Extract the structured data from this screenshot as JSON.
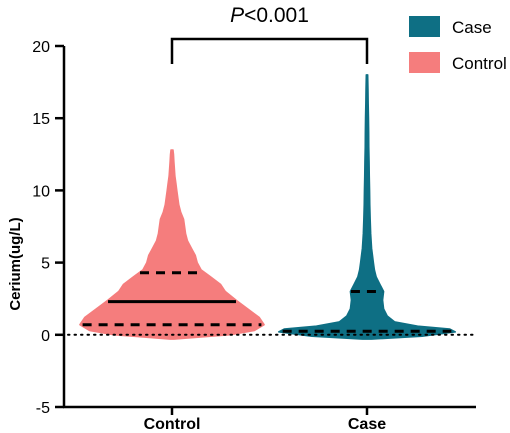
{
  "chart_data": {
    "type": "violin",
    "ylabel": "Cerium(ug/L)",
    "ylim": [
      -5,
      20
    ],
    "yticks": [
      -5,
      0,
      5,
      10,
      15,
      20
    ],
    "categories": [
      "Control",
      "Case"
    ],
    "reference_line_y": 0,
    "annotation": {
      "text_italic": "P",
      "text_rest": "<0.001",
      "between": [
        "Control",
        "Case"
      ]
    },
    "legend": {
      "placement": "top-right",
      "entries": [
        {
          "label": "Case",
          "color": "#0e6f84"
        },
        {
          "label": "Control",
          "color": "#f57d7d"
        }
      ]
    },
    "series": [
      {
        "name": "Control",
        "color": "#f57d7d",
        "quartiles": {
          "q1": 0.7,
          "median": 2.3,
          "q3": 4.3
        },
        "max": 12.8,
        "min": -0.3,
        "density": [
          [
            -0.3,
            0.02
          ],
          [
            0.0,
            0.6
          ],
          [
            0.3,
            0.85
          ],
          [
            0.7,
            0.95
          ],
          [
            1.2,
            0.9
          ],
          [
            1.8,
            0.78
          ],
          [
            2.4,
            0.66
          ],
          [
            3.0,
            0.55
          ],
          [
            3.5,
            0.5
          ],
          [
            4.0,
            0.4
          ],
          [
            4.5,
            0.3
          ],
          [
            5.0,
            0.26
          ],
          [
            5.5,
            0.24
          ],
          [
            6.0,
            0.2
          ],
          [
            6.5,
            0.16
          ],
          [
            7.0,
            0.14
          ],
          [
            7.5,
            0.13
          ],
          [
            8.0,
            0.12
          ],
          [
            8.5,
            0.09
          ],
          [
            9.0,
            0.07
          ],
          [
            9.5,
            0.06
          ],
          [
            10.0,
            0.05
          ],
          [
            10.5,
            0.04
          ],
          [
            11.0,
            0.03
          ],
          [
            11.5,
            0.025
          ],
          [
            12.0,
            0.02
          ],
          [
            12.5,
            0.015
          ],
          [
            12.8,
            0.01
          ]
        ]
      },
      {
        "name": "Case",
        "color": "#0e6f84",
        "quartiles": {
          "q1": 0.25,
          "median": 0.25,
          "q3": 3.0
        },
        "max": 18.0,
        "min": -0.3,
        "density": [
          [
            -0.3,
            0.05
          ],
          [
            -0.1,
            0.6
          ],
          [
            0.2,
            0.96
          ],
          [
            0.4,
            0.9
          ],
          [
            0.6,
            0.55
          ],
          [
            0.9,
            0.3
          ],
          [
            1.3,
            0.22
          ],
          [
            1.8,
            0.18
          ],
          [
            2.4,
            0.17
          ],
          [
            3.0,
            0.18
          ],
          [
            3.5,
            0.14
          ],
          [
            4.0,
            0.1
          ],
          [
            4.5,
            0.08
          ],
          [
            5.0,
            0.07
          ],
          [
            5.5,
            0.06
          ],
          [
            6.0,
            0.05
          ],
          [
            7.0,
            0.04
          ],
          [
            8.0,
            0.035
          ],
          [
            9.0,
            0.03
          ],
          [
            10.0,
            0.028
          ],
          [
            11.0,
            0.025
          ],
          [
            12.0,
            0.023
          ],
          [
            13.0,
            0.02
          ],
          [
            14.0,
            0.018
          ],
          [
            15.0,
            0.016
          ],
          [
            16.0,
            0.013
          ],
          [
            17.0,
            0.011
          ],
          [
            18.0,
            0.008
          ]
        ]
      }
    ]
  }
}
